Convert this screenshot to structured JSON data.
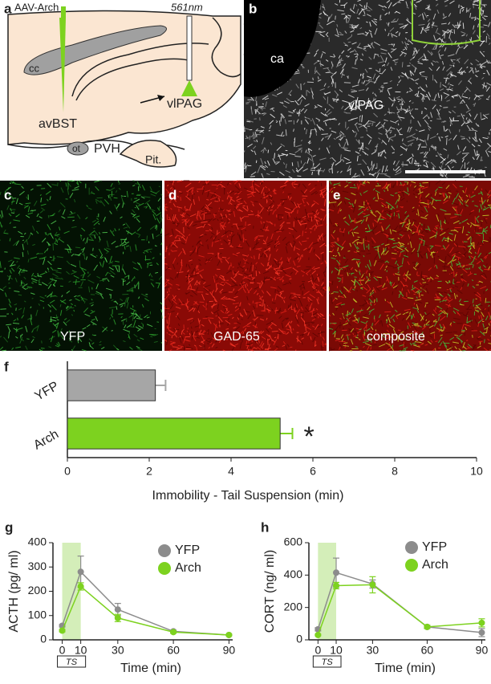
{
  "panels": {
    "a": {
      "label": "a",
      "virus": "AAV-Arch",
      "laser": "561nm",
      "cc": "cc",
      "avbst": "avBST",
      "vlpag": "vlPAG",
      "ot": "ot",
      "pvh": "PVH",
      "pit": "Pit."
    },
    "b": {
      "label": "b",
      "ca": "ca",
      "vlpag": "vlPAG"
    },
    "c": {
      "label": "c",
      "caption": "YFP"
    },
    "d": {
      "label": "d",
      "caption": "GAD-65"
    },
    "e": {
      "label": "e",
      "caption": "composite"
    }
  },
  "chart_data": [
    {
      "type": "hbar",
      "label": "f",
      "xlabel": "Immobility - Tail Suspension (min)",
      "categories": [
        "YFP",
        "Arch"
      ],
      "values": [
        2.15,
        5.2
      ],
      "errors": [
        0.25,
        0.3
      ],
      "colors": [
        "#a6a6a6",
        "#7dd21f"
      ],
      "annotation": "*",
      "xlim": [
        0,
        10
      ],
      "xticks": [
        0,
        2,
        4,
        6,
        8,
        10
      ]
    },
    {
      "type": "line",
      "label": "g",
      "xlabel": "Time (min)",
      "ylabel": "ACTH (pg/ ml)",
      "x": [
        0,
        10,
        30,
        60,
        90
      ],
      "xlim": [
        -5,
        92
      ],
      "xticks": [
        0,
        10,
        30,
        60,
        90
      ],
      "ylim": [
        0,
        400
      ],
      "yticks": [
        0,
        100,
        200,
        300,
        400
      ],
      "shade": [
        0,
        10
      ],
      "shade_label": "TS",
      "series": [
        {
          "name": "YFP",
          "color": "#8c8c8c",
          "values": [
            58,
            280,
            125,
            35,
            20
          ],
          "errors": [
            5,
            65,
            25,
            5,
            3
          ]
        },
        {
          "name": "Arch",
          "color": "#7dd21f",
          "values": [
            38,
            220,
            90,
            32,
            20
          ],
          "errors": [
            5,
            15,
            15,
            5,
            3
          ]
        }
      ]
    },
    {
      "type": "line",
      "label": "h",
      "xlabel": "Time (min)",
      "ylabel": "CORT (ng/ ml)",
      "x": [
        0,
        10,
        30,
        60,
        90
      ],
      "xlim": [
        -5,
        92
      ],
      "xticks": [
        0,
        10,
        30,
        60,
        90
      ],
      "ylim": [
        0,
        600
      ],
      "yticks": [
        0,
        200,
        400,
        600
      ],
      "shade": [
        0,
        10
      ],
      "shade_label": "TS",
      "series": [
        {
          "name": "YFP",
          "color": "#8c8c8c",
          "values": [
            65,
            415,
            345,
            80,
            45
          ],
          "errors": [
            10,
            90,
            25,
            10,
            25
          ]
        },
        {
          "name": "Arch",
          "color": "#7dd21f",
          "values": [
            30,
            335,
            340,
            80,
            105
          ],
          "errors": [
            5,
            20,
            50,
            10,
            25
          ]
        }
      ]
    }
  ]
}
